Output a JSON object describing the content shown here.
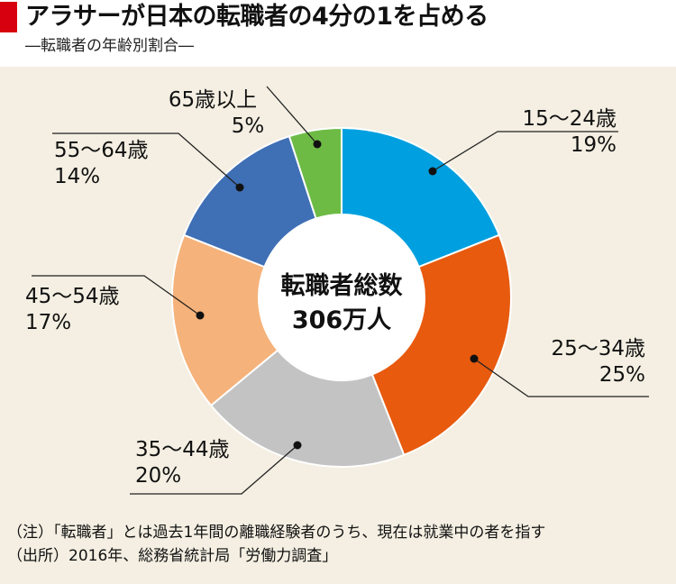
{
  "header": {
    "title": "アラサーが日本の転職者の4分の1を占める",
    "subtitle": "―転職者の年齢別割合―"
  },
  "chart_data": {
    "type": "pie",
    "variant": "donut",
    "center_label": [
      "転職者総数",
      "306万人"
    ],
    "slices": [
      {
        "label": "15〜24歳",
        "percent": "19%",
        "value": 19,
        "color": "#00a0e0"
      },
      {
        "label": "25〜34歳",
        "percent": "25%",
        "value": 25,
        "color": "#e85a0e"
      },
      {
        "label": "35〜44歳",
        "percent": "20%",
        "value": 20,
        "color": "#c3c3c3"
      },
      {
        "label": "45〜54歳",
        "percent": "17%",
        "value": 17,
        "color": "#f5b27a"
      },
      {
        "label": "55〜64歳",
        "percent": "14%",
        "value": 14,
        "color": "#3f6fb5"
      },
      {
        "label": "65歳以上",
        "percent": "5%",
        "value": 5,
        "color": "#6dbb45"
      }
    ]
  },
  "notes": {
    "note1": "（注）「転職者」とは過去1年間の離職経験者のうち、現在は就業中の者を指す",
    "note2": "（出所）2016年、総務省統計局「労働力調査」"
  }
}
